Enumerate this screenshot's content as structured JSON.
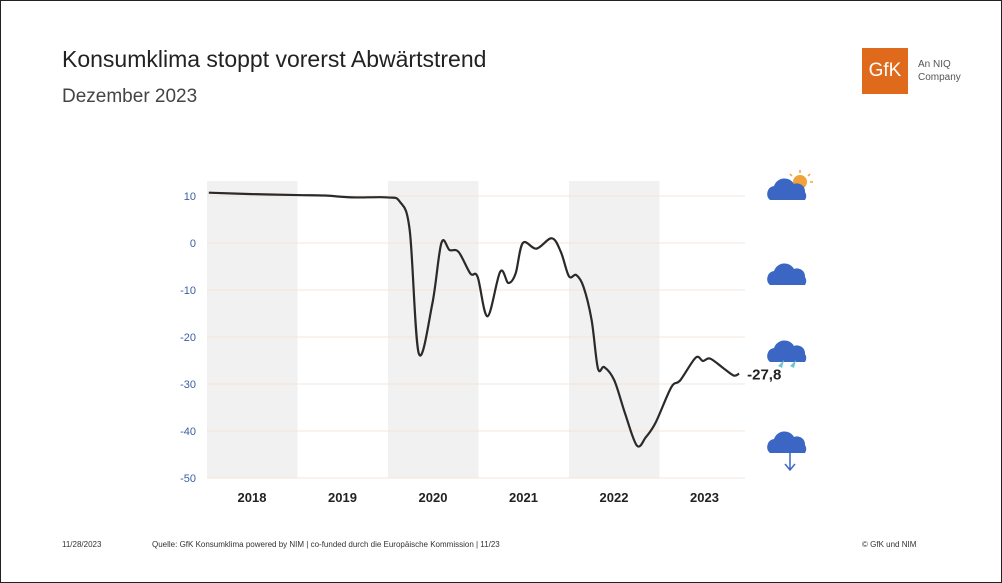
{
  "header": {
    "title": "Konsumklima stoppt vorerst Abwärtstrend",
    "subtitle": "Dezember 2023"
  },
  "logo": {
    "mark": "GfK",
    "tagline": "An NIQ Company",
    "color": "#e06a1b"
  },
  "footer": {
    "date": "11/28/2023",
    "source": "Quelle: GfK Konsumklima powered by NIM | co-funded durch die Europäische Kommission | 11/23",
    "copyright": "© GfK und NIM"
  },
  "chart_data": {
    "type": "line",
    "title": "Konsumklima",
    "xlabel": "",
    "ylabel": "",
    "ylim": [
      -50,
      12
    ],
    "yticks": [
      10,
      0,
      -10,
      -20,
      -30,
      -40,
      -50
    ],
    "xticks": [
      "2018",
      "2019",
      "2020",
      "2021",
      "2022",
      "2023"
    ],
    "shaded_years": [
      2018,
      2020,
      2022
    ],
    "end_label": "-27,8",
    "icons": [
      "sun-cloud",
      "cloud",
      "rain-cloud",
      "storm-cloud"
    ],
    "series": [
      {
        "name": "Konsumklima",
        "color": "#2a2a2a",
        "points": [
          [
            2018.02,
            10.7
          ],
          [
            2018.5,
            10.4
          ],
          [
            2019.0,
            10.2
          ],
          [
            2019.3,
            10.1
          ],
          [
            2019.6,
            9.7
          ],
          [
            2019.99,
            9.7
          ],
          [
            2020.13,
            8.8
          ],
          [
            2020.24,
            2.7
          ],
          [
            2020.34,
            -23.5
          ],
          [
            2020.49,
            -12.9
          ],
          [
            2020.59,
            0.0
          ],
          [
            2020.68,
            -1.5
          ],
          [
            2020.78,
            -1.9
          ],
          [
            2020.91,
            -6.5
          ],
          [
            2020.99,
            -7.2
          ],
          [
            2021.1,
            -15.6
          ],
          [
            2021.24,
            -6.1
          ],
          [
            2021.33,
            -8.5
          ],
          [
            2021.41,
            -6.5
          ],
          [
            2021.49,
            0.0
          ],
          [
            2021.64,
            -1.2
          ],
          [
            2021.81,
            1.0
          ],
          [
            2021.91,
            -1.9
          ],
          [
            2022.0,
            -7.1
          ],
          [
            2022.08,
            -6.8
          ],
          [
            2022.16,
            -9.3
          ],
          [
            2022.25,
            -16.4
          ],
          [
            2022.32,
            -26.7
          ],
          [
            2022.39,
            -26.4
          ],
          [
            2022.5,
            -29.2
          ],
          [
            2022.62,
            -36.3
          ],
          [
            2022.75,
            -43.1
          ],
          [
            2022.85,
            -41.3
          ],
          [
            2022.96,
            -38.1
          ],
          [
            2023.13,
            -30.7
          ],
          [
            2023.23,
            -29.2
          ],
          [
            2023.4,
            -24.4
          ],
          [
            2023.48,
            -25.1
          ],
          [
            2023.56,
            -24.6
          ],
          [
            2023.71,
            -26.7
          ],
          [
            2023.82,
            -28.2
          ],
          [
            2023.88,
            -27.8
          ]
        ]
      }
    ]
  }
}
